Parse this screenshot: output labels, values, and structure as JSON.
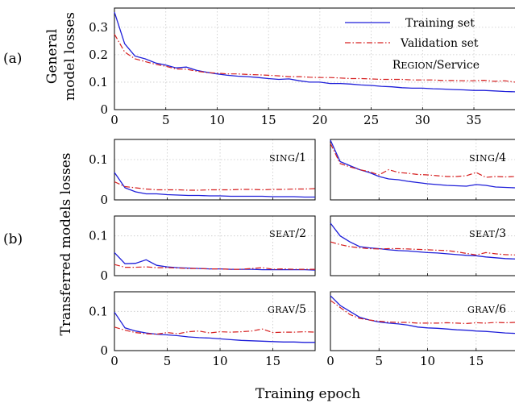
{
  "labels": {
    "part_a": "(a)",
    "part_b": "(b)",
    "ylabel_a_line1": "General",
    "ylabel_a_line2": "model losses",
    "ylabel_b": "Transferred models losses",
    "xlabel": "Training epoch"
  },
  "legend": {
    "training": "Training set",
    "validation": "Validation set"
  },
  "colors": {
    "training": "#1f1fd9",
    "validation": "#d62020"
  },
  "chart_data": [
    {
      "type": "line",
      "id": "general",
      "annotation_sc": "REGION",
      "annotation_rest": "/Service",
      "xlim": [
        0,
        39
      ],
      "ylim": [
        0,
        0.37
      ],
      "xticks": [
        "0",
        "5",
        "10",
        "15",
        "20",
        "25",
        "30",
        "35"
      ],
      "xtick_values": [
        0,
        5,
        10,
        15,
        20,
        25,
        30,
        35
      ],
      "yticks": [
        "0",
        "0.1",
        "0.2",
        "0.3"
      ],
      "ytick_values": [
        0,
        0.1,
        0.2,
        0.3
      ],
      "series": [
        {
          "name": "Training set",
          "style": "train",
          "values": [
            0.355,
            0.24,
            0.195,
            0.185,
            0.17,
            0.162,
            0.152,
            0.155,
            0.143,
            0.136,
            0.13,
            0.125,
            0.122,
            0.12,
            0.117,
            0.113,
            0.11,
            0.112,
            0.105,
            0.1,
            0.1,
            0.095,
            0.095,
            0.093,
            0.09,
            0.088,
            0.085,
            0.083,
            0.08,
            0.078,
            0.078,
            0.076,
            0.075,
            0.073,
            0.072,
            0.07,
            0.07,
            0.068,
            0.066,
            0.065
          ]
        },
        {
          "name": "Validation set",
          "style": "val",
          "values": [
            0.275,
            0.21,
            0.185,
            0.175,
            0.165,
            0.158,
            0.148,
            0.147,
            0.14,
            0.135,
            0.133,
            0.13,
            0.13,
            0.128,
            0.127,
            0.125,
            0.123,
            0.12,
            0.12,
            0.118,
            0.117,
            0.117,
            0.115,
            0.113,
            0.113,
            0.112,
            0.11,
            0.11,
            0.11,
            0.108,
            0.108,
            0.108,
            0.106,
            0.106,
            0.105,
            0.105,
            0.107,
            0.103,
            0.105,
            0.1
          ]
        }
      ]
    },
    {
      "type": "line",
      "id": "sing1",
      "annotation_sc": "SING",
      "annotation_rest": "/1",
      "xlim": [
        0,
        19
      ],
      "ylim": [
        0,
        0.15
      ],
      "yticks": [
        "0",
        "0.1"
      ],
      "ytick_values": [
        0,
        0.1
      ],
      "series": [
        {
          "name": "Training set",
          "style": "train",
          "values": [
            0.068,
            0.03,
            0.02,
            0.015,
            0.015,
            0.013,
            0.012,
            0.011,
            0.011,
            0.01,
            0.01,
            0.009,
            0.009,
            0.009,
            0.009,
            0.008,
            0.008,
            0.008,
            0.007,
            0.007
          ]
        },
        {
          "name": "Validation set",
          "style": "val",
          "values": [
            0.045,
            0.033,
            0.03,
            0.027,
            0.025,
            0.025,
            0.025,
            0.024,
            0.024,
            0.025,
            0.025,
            0.025,
            0.026,
            0.026,
            0.025,
            0.026,
            0.026,
            0.027,
            0.027,
            0.028
          ]
        }
      ]
    },
    {
      "type": "line",
      "id": "sing4",
      "annotation_sc": "SING",
      "annotation_rest": "/4",
      "xlim": [
        0,
        19
      ],
      "ylim": [
        0,
        0.15
      ],
      "yticks": [],
      "ytick_values": [],
      "series": [
        {
          "name": "Training set",
          "style": "train",
          "values": [
            0.148,
            0.095,
            0.085,
            0.075,
            0.068,
            0.058,
            0.052,
            0.05,
            0.046,
            0.043,
            0.04,
            0.038,
            0.036,
            0.035,
            0.034,
            0.038,
            0.036,
            0.032,
            0.031,
            0.03
          ]
        },
        {
          "name": "Validation set",
          "style": "val",
          "values": [
            0.14,
            0.09,
            0.082,
            0.075,
            0.07,
            0.062,
            0.075,
            0.068,
            0.066,
            0.063,
            0.062,
            0.06,
            0.058,
            0.058,
            0.06,
            0.068,
            0.056,
            0.058,
            0.057,
            0.058
          ]
        }
      ]
    },
    {
      "type": "line",
      "id": "seat2",
      "annotation_sc": "SEAT",
      "annotation_rest": "/2",
      "xlim": [
        0,
        19
      ],
      "ylim": [
        0,
        0.15
      ],
      "yticks": [
        "0",
        "0.1"
      ],
      "ytick_values": [
        0,
        0.1
      ],
      "series": [
        {
          "name": "Training set",
          "style": "train",
          "values": [
            0.058,
            0.03,
            0.031,
            0.04,
            0.026,
            0.022,
            0.02,
            0.019,
            0.018,
            0.017,
            0.017,
            0.016,
            0.016,
            0.016,
            0.015,
            0.015,
            0.015,
            0.015,
            0.015,
            0.014
          ]
        },
        {
          "name": "Validation set",
          "style": "val",
          "values": [
            0.028,
            0.021,
            0.021,
            0.022,
            0.02,
            0.02,
            0.019,
            0.018,
            0.018,
            0.017,
            0.017,
            0.016,
            0.016,
            0.018,
            0.02,
            0.016,
            0.017,
            0.016,
            0.016,
            0.016
          ]
        }
      ]
    },
    {
      "type": "line",
      "id": "seat3",
      "annotation_sc": "SEAT",
      "annotation_rest": "/3",
      "xlim": [
        0,
        19
      ],
      "ylim": [
        0,
        0.15
      ],
      "yticks": [],
      "ytick_values": [],
      "series": [
        {
          "name": "Training set",
          "style": "train",
          "values": [
            0.132,
            0.1,
            0.085,
            0.073,
            0.07,
            0.068,
            0.065,
            0.063,
            0.062,
            0.06,
            0.058,
            0.057,
            0.055,
            0.053,
            0.051,
            0.05,
            0.047,
            0.045,
            0.043,
            0.042
          ]
        },
        {
          "name": "Validation set",
          "style": "val",
          "values": [
            0.085,
            0.078,
            0.073,
            0.07,
            0.068,
            0.067,
            0.068,
            0.068,
            0.067,
            0.066,
            0.065,
            0.064,
            0.063,
            0.06,
            0.056,
            0.052,
            0.058,
            0.055,
            0.053,
            0.052
          ]
        }
      ]
    },
    {
      "type": "line",
      "id": "grav5",
      "annotation_sc": "GRAV",
      "annotation_rest": "/5",
      "xlim": [
        0,
        19
      ],
      "ylim": [
        0,
        0.15
      ],
      "xticks": [
        "0",
        "5",
        "10",
        "15"
      ],
      "xtick_values": [
        0,
        5,
        10,
        15
      ],
      "yticks": [
        "0",
        "0.1"
      ],
      "ytick_values": [
        0,
        0.1
      ],
      "series": [
        {
          "name": "Training set",
          "style": "train",
          "values": [
            0.098,
            0.058,
            0.05,
            0.045,
            0.042,
            0.04,
            0.038,
            0.035,
            0.033,
            0.032,
            0.03,
            0.028,
            0.026,
            0.025,
            0.024,
            0.023,
            0.022,
            0.022,
            0.021,
            0.021
          ]
        },
        {
          "name": "Validation set",
          "style": "val",
          "values": [
            0.06,
            0.052,
            0.046,
            0.043,
            0.042,
            0.046,
            0.043,
            0.048,
            0.05,
            0.045,
            0.048,
            0.047,
            0.048,
            0.05,
            0.055,
            0.046,
            0.047,
            0.047,
            0.048,
            0.047
          ]
        }
      ]
    },
    {
      "type": "line",
      "id": "grav6",
      "annotation_sc": "GRAV",
      "annotation_rest": "/6",
      "xlim": [
        0,
        19
      ],
      "ylim": [
        0,
        0.15
      ],
      "xticks": [
        "0",
        "5",
        "10",
        "15"
      ],
      "xtick_values": [
        0,
        5,
        10,
        15
      ],
      "yticks": [],
      "ytick_values": [],
      "series": [
        {
          "name": "Training set",
          "style": "train",
          "values": [
            0.14,
            0.115,
            0.1,
            0.085,
            0.078,
            0.073,
            0.07,
            0.068,
            0.065,
            0.06,
            0.058,
            0.057,
            0.055,
            0.053,
            0.052,
            0.05,
            0.049,
            0.047,
            0.045,
            0.044
          ]
        },
        {
          "name": "Validation set",
          "style": "val",
          "values": [
            0.128,
            0.11,
            0.092,
            0.082,
            0.078,
            0.075,
            0.073,
            0.072,
            0.072,
            0.07,
            0.07,
            0.07,
            0.071,
            0.07,
            0.069,
            0.071,
            0.07,
            0.072,
            0.071,
            0.072
          ]
        }
      ]
    }
  ]
}
